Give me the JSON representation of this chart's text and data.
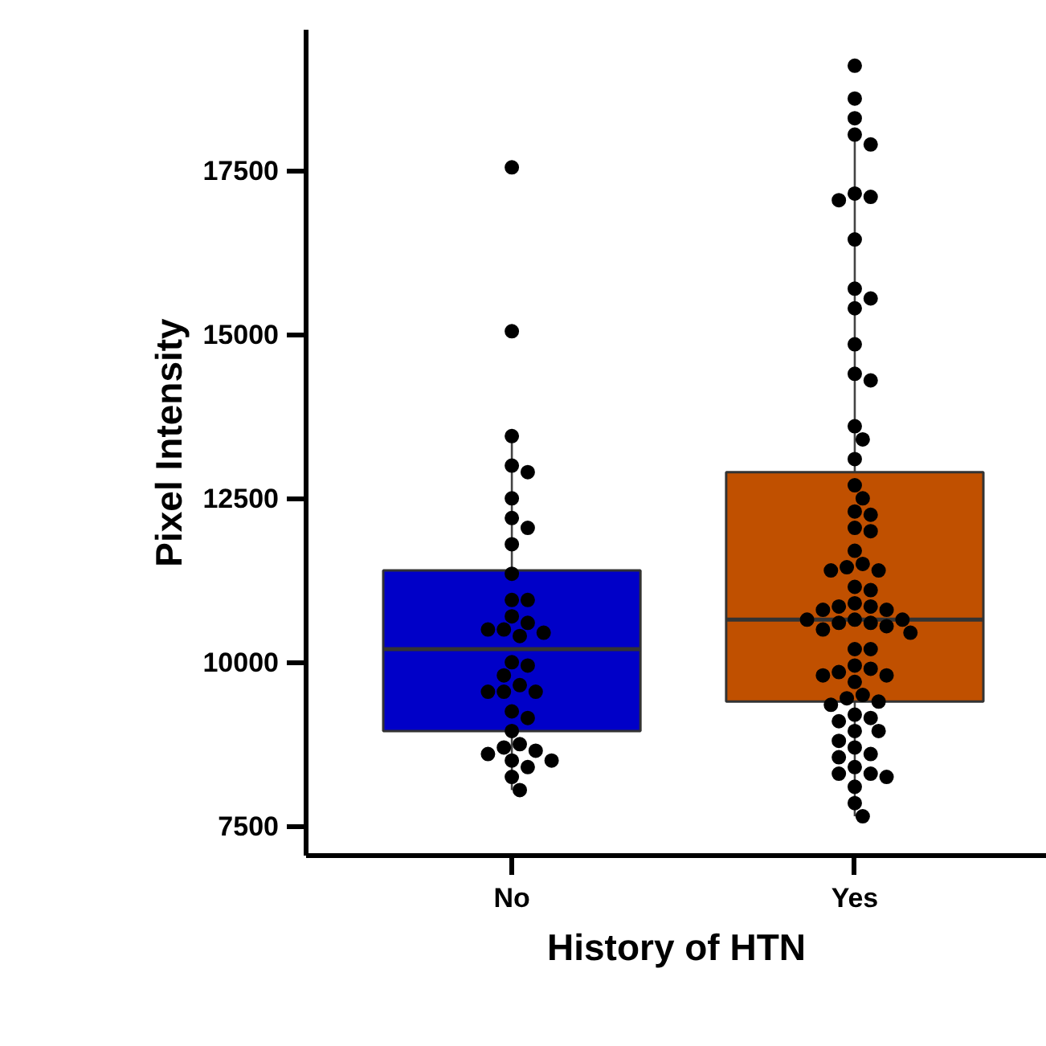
{
  "chart_data": {
    "type": "box",
    "xlabel": "History of HTN",
    "ylabel": "Pixel Intensity",
    "categories": [
      "No",
      "Yes"
    ],
    "ylim": [
      7050,
      19650
    ],
    "yticks": [
      7500,
      10000,
      12500,
      15000,
      17500
    ],
    "grid": false,
    "marker": "circle",
    "series": [
      {
        "colors": [
          "#0000c8",
          "#c05000"
        ],
        "boxes": [
          {
            "low": 8050,
            "q1": 8950,
            "median": 10200,
            "q3": 11400,
            "high": 13450
          },
          {
            "low": 7650,
            "q1": 9400,
            "median": 10650,
            "q3": 12900,
            "high": 18050
          }
        ]
      },
      {
        "type": "scatter",
        "color": "#000000",
        "x": [
          "No",
          "No",
          "No",
          "No",
          "No",
          "No",
          "No",
          "No",
          "No",
          "No",
          "No",
          "No",
          "No",
          "No",
          "No",
          "No",
          "No",
          "No",
          "No",
          "No",
          "No",
          "No",
          "No",
          "No",
          "No",
          "No",
          "No",
          "No",
          "No",
          "No",
          "No",
          "No",
          "No",
          "No",
          "No",
          "No",
          "No",
          "Yes",
          "Yes",
          "Yes",
          "Yes",
          "Yes",
          "Yes",
          "Yes",
          "Yes",
          "Yes",
          "Yes",
          "Yes",
          "Yes",
          "Yes",
          "Yes",
          "Yes",
          "Yes",
          "Yes",
          "Yes",
          "Yes",
          "Yes",
          "Yes",
          "Yes",
          "Yes",
          "Yes",
          "Yes",
          "Yes",
          "Yes",
          "Yes",
          "Yes",
          "Yes",
          "Yes",
          "Yes",
          "Yes",
          "Yes",
          "Yes",
          "Yes",
          "Yes",
          "Yes",
          "Yes",
          "Yes",
          "Yes",
          "Yes",
          "Yes",
          "Yes",
          "Yes",
          "Yes",
          "Yes",
          "Yes",
          "Yes",
          "Yes",
          "Yes",
          "Yes",
          "Yes",
          "Yes",
          "Yes",
          "Yes",
          "Yes",
          "Yes",
          "Yes",
          "Yes",
          "Yes",
          "Yes",
          "Yes",
          "Yes",
          "Yes",
          "Yes",
          "Yes",
          "Yes",
          "Yes",
          "Yes",
          "Yes",
          "Yes"
        ],
        "values": [
          17550,
          15050,
          13450,
          13000,
          12900,
          12500,
          12200,
          12050,
          11800,
          11350,
          10950,
          10950,
          10700,
          10600,
          10500,
          10500,
          10450,
          10400,
          10000,
          9950,
          9800,
          9650,
          9550,
          9550,
          9550,
          9250,
          9150,
          8950,
          8750,
          8700,
          8650,
          8600,
          8500,
          8500,
          8400,
          8250,
          8050,
          19100,
          18600,
          18300,
          18050,
          17900,
          17150,
          17100,
          17050,
          16450,
          15700,
          15550,
          15400,
          14850,
          14400,
          14300,
          13600,
          13400,
          13100,
          12700,
          12500,
          12300,
          12250,
          12050,
          12000,
          11700,
          11500,
          11450,
          11400,
          11400,
          11150,
          11100,
          10900,
          10850,
          10850,
          10800,
          10800,
          10650,
          10650,
          10650,
          10600,
          10600,
          10550,
          10500,
          10450,
          10200,
          10200,
          9950,
          9900,
          9850,
          9800,
          9800,
          9700,
          9500,
          9450,
          9400,
          9350,
          9200,
          9150,
          9100,
          8950,
          8950,
          8800,
          8700,
          8600,
          8550,
          8400,
          8300,
          8300,
          8250,
          8100,
          7850,
          7650
        ]
      }
    ]
  }
}
